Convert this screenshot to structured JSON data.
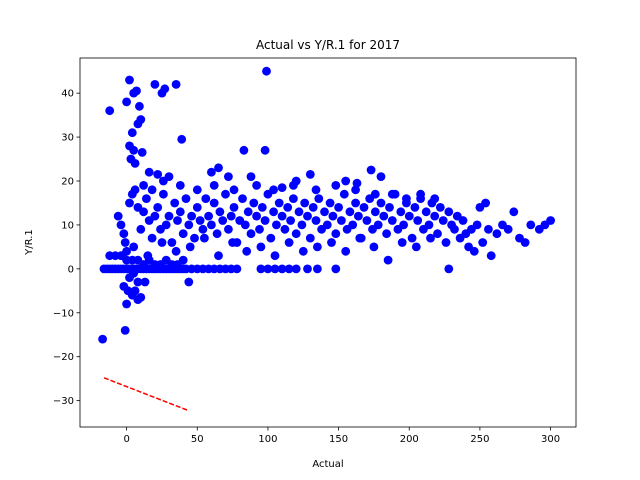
{
  "chart_data": {
    "type": "scatter",
    "title": "Actual vs Y/R.1 for 2017",
    "xlabel": "Actual",
    "ylabel": "Y/R.1",
    "xlim": [
      -33,
      318
    ],
    "ylim": [
      -36,
      48
    ],
    "x_ticks": [
      0,
      50,
      100,
      150,
      200,
      250,
      300
    ],
    "y_ticks": [
      -30,
      -20,
      -10,
      0,
      10,
      20,
      30,
      40
    ],
    "grid": false,
    "legend": "none",
    "series": [
      {
        "kind": "scatter",
        "color": "#0000ff",
        "points": [
          [
            -17,
            -16
          ],
          [
            -12,
            36
          ],
          [
            2,
            43
          ],
          [
            0,
            38
          ],
          [
            5,
            40
          ],
          [
            7,
            40.5
          ],
          [
            9,
            37
          ],
          [
            10,
            34
          ],
          [
            8,
            33
          ],
          [
            4,
            31
          ],
          [
            2,
            28
          ],
          [
            5,
            27
          ],
          [
            11,
            26.5
          ],
          [
            3,
            25
          ],
          [
            6,
            24
          ],
          [
            20,
            42
          ],
          [
            25,
            40
          ],
          [
            27,
            41
          ],
          [
            35,
            42
          ],
          [
            39,
            29.5
          ],
          [
            99,
            45
          ],
          [
            83,
            27
          ],
          [
            98,
            27
          ],
          [
            65,
            23
          ],
          [
            60,
            22
          ],
          [
            173,
            22.5
          ],
          [
            130,
            21.5
          ],
          [
            180,
            21
          ],
          [
            16,
            22
          ],
          [
            22,
            21.5
          ],
          [
            30,
            21
          ],
          [
            72,
            21
          ],
          [
            88,
            21
          ],
          [
            155,
            20
          ],
          [
            163,
            19.5
          ],
          [
            120,
            20
          ],
          [
            110,
            18.5
          ],
          [
            -6,
            12
          ],
          [
            -4,
            10
          ],
          [
            -2,
            8
          ],
          [
            -1,
            6
          ],
          [
            0,
            4
          ],
          [
            -3,
            3
          ],
          [
            2,
            15
          ],
          [
            4,
            17
          ],
          [
            6,
            18
          ],
          [
            8,
            14
          ],
          [
            10,
            9
          ],
          [
            12,
            13
          ],
          [
            14,
            16
          ],
          [
            16,
            11
          ],
          [
            18,
            7
          ],
          [
            20,
            12
          ],
          [
            22,
            14
          ],
          [
            24,
            9
          ],
          [
            26,
            17
          ],
          [
            28,
            10
          ],
          [
            30,
            12
          ],
          [
            32,
            6
          ],
          [
            34,
            15
          ],
          [
            36,
            11
          ],
          [
            38,
            13
          ],
          [
            40,
            8
          ],
          [
            42,
            16
          ],
          [
            44,
            10
          ],
          [
            46,
            12
          ],
          [
            48,
            7
          ],
          [
            50,
            14
          ],
          [
            52,
            11
          ],
          [
            54,
            9
          ],
          [
            56,
            16
          ],
          [
            58,
            12
          ],
          [
            60,
            10
          ],
          [
            62,
            15
          ],
          [
            64,
            8
          ],
          [
            66,
            13
          ],
          [
            68,
            11
          ],
          [
            70,
            17
          ],
          [
            72,
            9
          ],
          [
            74,
            12
          ],
          [
            76,
            14
          ],
          [
            78,
            6
          ],
          [
            80,
            11
          ],
          [
            82,
            16
          ],
          [
            84,
            10
          ],
          [
            86,
            13
          ],
          [
            88,
            8
          ],
          [
            90,
            15
          ],
          [
            92,
            12
          ],
          [
            94,
            9
          ],
          [
            96,
            14
          ],
          [
            98,
            11
          ],
          [
            100,
            17
          ],
          [
            102,
            7
          ],
          [
            104,
            13
          ],
          [
            106,
            10
          ],
          [
            108,
            15
          ],
          [
            110,
            12
          ],
          [
            112,
            9
          ],
          [
            114,
            14
          ],
          [
            116,
            11
          ],
          [
            118,
            16
          ],
          [
            120,
            8
          ],
          [
            122,
            13
          ],
          [
            124,
            10
          ],
          [
            126,
            15
          ],
          [
            128,
            12
          ],
          [
            130,
            7
          ],
          [
            132,
            14
          ],
          [
            134,
            11
          ],
          [
            136,
            16
          ],
          [
            138,
            9
          ],
          [
            140,
            13
          ],
          [
            142,
            10
          ],
          [
            144,
            15
          ],
          [
            146,
            12
          ],
          [
            148,
            8
          ],
          [
            150,
            14
          ],
          [
            152,
            11
          ],
          [
            154,
            17
          ],
          [
            156,
            9
          ],
          [
            158,
            13
          ],
          [
            160,
            10
          ],
          [
            162,
            15
          ],
          [
            164,
            12
          ],
          [
            166,
            7
          ],
          [
            168,
            14
          ],
          [
            170,
            11
          ],
          [
            172,
            16
          ],
          [
            174,
            9
          ],
          [
            176,
            13
          ],
          [
            178,
            10
          ],
          [
            180,
            15
          ],
          [
            182,
            12
          ],
          [
            184,
            8
          ],
          [
            186,
            14
          ],
          [
            188,
            11
          ],
          [
            190,
            17
          ],
          [
            192,
            9
          ],
          [
            194,
            13
          ],
          [
            196,
            10
          ],
          [
            198,
            15
          ],
          [
            200,
            12
          ],
          [
            202,
            7
          ],
          [
            204,
            14
          ],
          [
            206,
            11
          ],
          [
            208,
            16
          ],
          [
            210,
            9
          ],
          [
            212,
            13
          ],
          [
            214,
            10
          ],
          [
            216,
            15
          ],
          [
            218,
            12
          ],
          [
            220,
            8
          ],
          [
            222,
            14
          ],
          [
            224,
            11
          ],
          [
            226,
            6
          ],
          [
            228,
            13
          ],
          [
            230,
            10
          ],
          [
            232,
            9
          ],
          [
            234,
            12
          ],
          [
            236,
            7
          ],
          [
            238,
            11
          ],
          [
            240,
            8
          ],
          [
            242,
            5
          ],
          [
            244,
            9
          ],
          [
            246,
            4
          ],
          [
            248,
            10
          ],
          [
            250,
            14
          ],
          [
            252,
            6
          ],
          [
            254,
            15
          ],
          [
            256,
            9
          ],
          [
            258,
            3
          ],
          [
            262,
            8
          ],
          [
            266,
            10
          ],
          [
            270,
            9
          ],
          [
            274,
            13
          ],
          [
            278,
            7
          ],
          [
            282,
            6
          ],
          [
            286,
            10
          ],
          [
            292,
            9
          ],
          [
            296,
            10
          ],
          [
            300,
            11
          ],
          [
            5,
            5
          ],
          [
            15,
            3
          ],
          [
            25,
            6
          ],
          [
            35,
            4
          ],
          [
            45,
            5
          ],
          [
            55,
            7
          ],
          [
            65,
            3
          ],
          [
            75,
            6
          ],
          [
            85,
            4
          ],
          [
            95,
            5
          ],
          [
            105,
            3
          ],
          [
            115,
            6
          ],
          [
            125,
            4
          ],
          [
            135,
            5
          ],
          [
            145,
            6
          ],
          [
            155,
            4
          ],
          [
            165,
            7
          ],
          [
            175,
            5
          ],
          [
            185,
            2
          ],
          [
            195,
            6
          ],
          [
            205,
            5
          ],
          [
            215,
            7
          ],
          [
            12,
            19
          ],
          [
            18,
            18
          ],
          [
            26,
            20
          ],
          [
            38,
            19
          ],
          [
            50,
            18
          ],
          [
            62,
            19
          ],
          [
            76,
            18
          ],
          [
            92,
            19
          ],
          [
            104,
            18
          ],
          [
            118,
            19
          ],
          [
            134,
            18
          ],
          [
            148,
            19
          ],
          [
            162,
            18
          ],
          [
            176,
            17
          ],
          [
            188,
            17
          ],
          [
            198,
            16
          ],
          [
            208,
            17
          ],
          [
            218,
            16
          ],
          [
            -16,
            0
          ],
          [
            -14,
            0
          ],
          [
            -12,
            0
          ],
          [
            -10,
            0
          ],
          [
            -8,
            0
          ],
          [
            -6,
            0
          ],
          [
            -4,
            0
          ],
          [
            -2,
            0
          ],
          [
            0,
            0
          ],
          [
            2,
            0
          ],
          [
            4,
            0
          ],
          [
            6,
            0
          ],
          [
            8,
            0
          ],
          [
            10,
            0
          ],
          [
            12,
            0
          ],
          [
            14,
            0
          ],
          [
            16,
            0
          ],
          [
            18,
            0
          ],
          [
            20,
            0
          ],
          [
            22,
            0
          ],
          [
            24,
            0
          ],
          [
            26,
            0
          ],
          [
            28,
            0
          ],
          [
            30,
            0
          ],
          [
            32,
            0
          ],
          [
            34,
            0
          ],
          [
            36,
            0
          ],
          [
            38,
            0
          ],
          [
            40,
            0
          ],
          [
            42,
            0
          ],
          [
            46,
            0
          ],
          [
            50,
            0
          ],
          [
            54,
            0
          ],
          [
            58,
            0
          ],
          [
            62,
            0
          ],
          [
            66,
            0
          ],
          [
            70,
            0
          ],
          [
            74,
            0
          ],
          [
            78,
            0
          ],
          [
            95,
            0
          ],
          [
            100,
            0
          ],
          [
            105,
            0
          ],
          [
            110,
            0
          ],
          [
            115,
            0
          ],
          [
            120,
            0
          ],
          [
            128,
            0
          ],
          [
            135,
            0
          ],
          [
            148,
            0
          ],
          [
            228,
            0
          ],
          [
            -12,
            3
          ],
          [
            -8,
            3
          ],
          [
            -4,
            3
          ],
          [
            0,
            2
          ],
          [
            4,
            2
          ],
          [
            8,
            2
          ],
          [
            12,
            1
          ],
          [
            16,
            2
          ],
          [
            20,
            1
          ],
          [
            24,
            1
          ],
          [
            28,
            2
          ],
          [
            32,
            1
          ],
          [
            36,
            1
          ],
          [
            40,
            2
          ],
          [
            -2,
            -4
          ],
          [
            1,
            -5
          ],
          [
            4,
            -6
          ],
          [
            8,
            -7
          ],
          [
            10,
            -6.5
          ],
          [
            6,
            -5
          ],
          [
            0,
            -8
          ],
          [
            -1,
            -14
          ],
          [
            13,
            -3
          ],
          [
            44,
            -3
          ],
          [
            2,
            -2
          ],
          [
            5,
            -1
          ],
          [
            8,
            -3
          ]
        ]
      },
      {
        "kind": "line",
        "style": "dashed",
        "color": "#ff0000",
        "points": [
          [
            -16,
            -24.8
          ],
          [
            44,
            -32.3
          ]
        ]
      }
    ]
  }
}
